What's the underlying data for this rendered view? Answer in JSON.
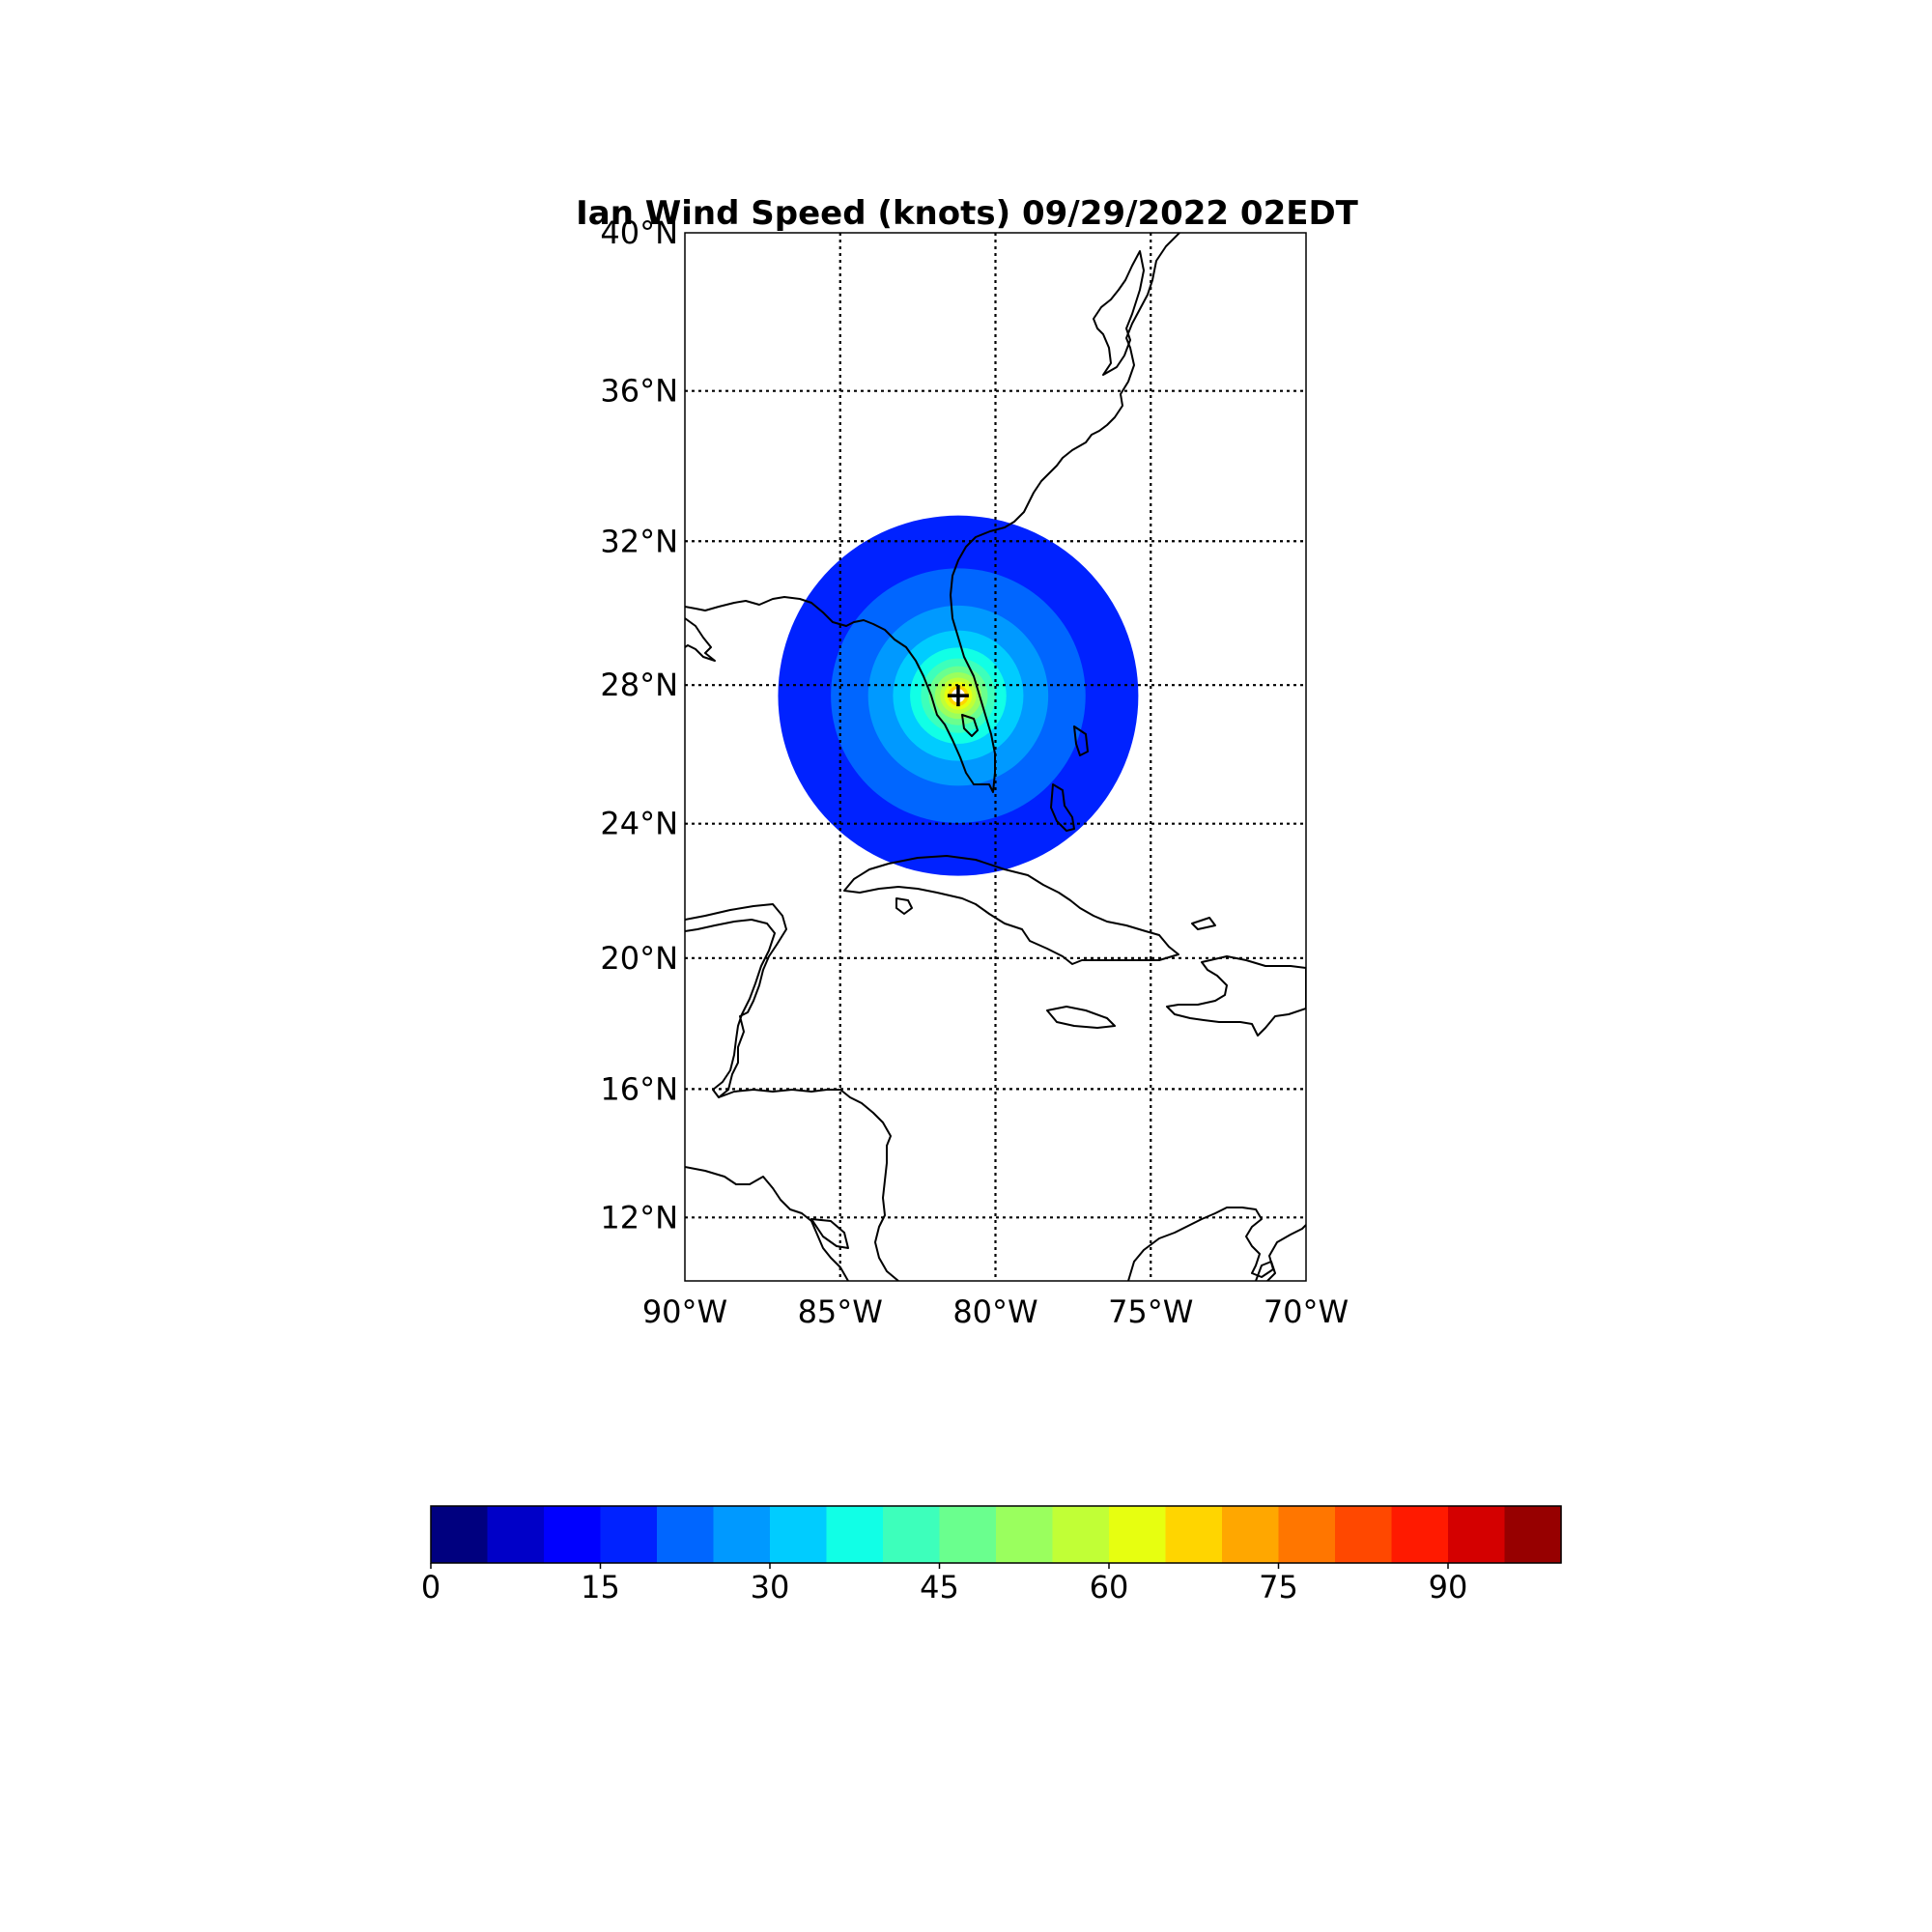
{
  "title": "Ian Wind Speed (knots) 09/29/2022  02EDT",
  "map": {
    "extent": {
      "lon_min": -90,
      "lon_max": -70,
      "lat_min": 10,
      "lat_max": 40
    },
    "lat_ticks": [
      {
        "value": 40,
        "label": "40°N"
      },
      {
        "value": 36,
        "label": "36°N"
      },
      {
        "value": 32,
        "label": "32°N"
      },
      {
        "value": 28,
        "label": "28°N"
      },
      {
        "value": 24,
        "label": "24°N"
      },
      {
        "value": 20,
        "label": "20°N"
      },
      {
        "value": 16,
        "label": "16°N"
      },
      {
        "value": 12,
        "label": "12°N"
      }
    ],
    "lon_ticks": [
      {
        "value": -90,
        "label": "90°W"
      },
      {
        "value": -85,
        "label": "85°W"
      },
      {
        "value": -80,
        "label": "80°W"
      },
      {
        "value": -75,
        "label": "75°W"
      },
      {
        "value": -70,
        "label": "70°W"
      }
    ],
    "gridlines": "dotted",
    "storm_center": {
      "lon": -81.2,
      "lat": 27.7,
      "marker": "plus-icon"
    },
    "wind_rings": [
      {
        "radius_deg_lon": 5.8,
        "speed": 15
      },
      {
        "radius_deg_lon": 4.1,
        "speed": 20
      },
      {
        "radius_deg_lon": 2.9,
        "speed": 25
      },
      {
        "radius_deg_lon": 2.1,
        "speed": 30
      },
      {
        "radius_deg_lon": 1.55,
        "speed": 35
      },
      {
        "radius_deg_lon": 1.2,
        "speed": 40
      },
      {
        "radius_deg_lon": 0.95,
        "speed": 45
      },
      {
        "radius_deg_lon": 0.75,
        "speed": 50
      },
      {
        "radius_deg_lon": 0.58,
        "speed": 55
      },
      {
        "radius_deg_lon": 0.45,
        "speed": 60
      },
      {
        "radius_deg_lon": 0.33,
        "speed": 65
      }
    ]
  },
  "colorbar": {
    "min": 0,
    "max": 100,
    "step": 5,
    "colors": [
      "#00007f",
      "#0000c8",
      "#0000ff",
      "#0022ff",
      "#0066ff",
      "#0099ff",
      "#00ccff",
      "#11ffe6",
      "#3dffbb",
      "#6aff8e",
      "#9aff5e",
      "#c1ff36",
      "#e7ff10",
      "#ffd500",
      "#ffa700",
      "#ff7600",
      "#ff4800",
      "#ff1a00",
      "#d40000",
      "#970000"
    ],
    "tick_labels": [
      "0",
      "15",
      "30",
      "45",
      "60",
      "75",
      "90"
    ],
    "tick_values": [
      0,
      15,
      30,
      45,
      60,
      75,
      90
    ]
  }
}
